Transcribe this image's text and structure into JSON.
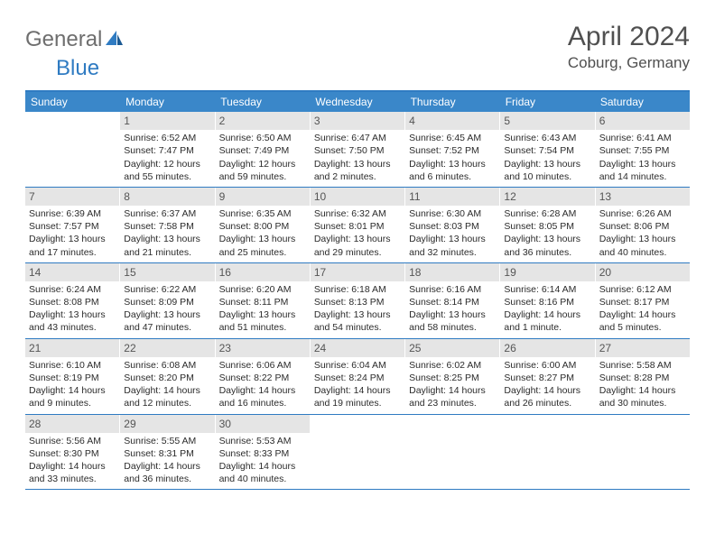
{
  "logo": {
    "text1": "General",
    "text2": "Blue"
  },
  "title": "April 2024",
  "location": "Coburg, Germany",
  "colors": {
    "header_bg": "#3a87c9",
    "accent_line": "#2f7bc2",
    "daynum_bg": "#e5e5e5",
    "text": "#2b2b2b",
    "title_text": "#505050"
  },
  "weekdays": [
    "Sunday",
    "Monday",
    "Tuesday",
    "Wednesday",
    "Thursday",
    "Friday",
    "Saturday"
  ],
  "weeks": [
    [
      {
        "day": "",
        "empty": true
      },
      {
        "day": "1",
        "sunrise": "6:52 AM",
        "sunset": "7:47 PM",
        "daylight": "12 hours and 55 minutes."
      },
      {
        "day": "2",
        "sunrise": "6:50 AM",
        "sunset": "7:49 PM",
        "daylight": "12 hours and 59 minutes."
      },
      {
        "day": "3",
        "sunrise": "6:47 AM",
        "sunset": "7:50 PM",
        "daylight": "13 hours and 2 minutes."
      },
      {
        "day": "4",
        "sunrise": "6:45 AM",
        "sunset": "7:52 PM",
        "daylight": "13 hours and 6 minutes."
      },
      {
        "day": "5",
        "sunrise": "6:43 AM",
        "sunset": "7:54 PM",
        "daylight": "13 hours and 10 minutes."
      },
      {
        "day": "6",
        "sunrise": "6:41 AM",
        "sunset": "7:55 PM",
        "daylight": "13 hours and 14 minutes."
      }
    ],
    [
      {
        "day": "7",
        "sunrise": "6:39 AM",
        "sunset": "7:57 PM",
        "daylight": "13 hours and 17 minutes."
      },
      {
        "day": "8",
        "sunrise": "6:37 AM",
        "sunset": "7:58 PM",
        "daylight": "13 hours and 21 minutes."
      },
      {
        "day": "9",
        "sunrise": "6:35 AM",
        "sunset": "8:00 PM",
        "daylight": "13 hours and 25 minutes."
      },
      {
        "day": "10",
        "sunrise": "6:32 AM",
        "sunset": "8:01 PM",
        "daylight": "13 hours and 29 minutes."
      },
      {
        "day": "11",
        "sunrise": "6:30 AM",
        "sunset": "8:03 PM",
        "daylight": "13 hours and 32 minutes."
      },
      {
        "day": "12",
        "sunrise": "6:28 AM",
        "sunset": "8:05 PM",
        "daylight": "13 hours and 36 minutes."
      },
      {
        "day": "13",
        "sunrise": "6:26 AM",
        "sunset": "8:06 PM",
        "daylight": "13 hours and 40 minutes."
      }
    ],
    [
      {
        "day": "14",
        "sunrise": "6:24 AM",
        "sunset": "8:08 PM",
        "daylight": "13 hours and 43 minutes."
      },
      {
        "day": "15",
        "sunrise": "6:22 AM",
        "sunset": "8:09 PM",
        "daylight": "13 hours and 47 minutes."
      },
      {
        "day": "16",
        "sunrise": "6:20 AM",
        "sunset": "8:11 PM",
        "daylight": "13 hours and 51 minutes."
      },
      {
        "day": "17",
        "sunrise": "6:18 AM",
        "sunset": "8:13 PM",
        "daylight": "13 hours and 54 minutes."
      },
      {
        "day": "18",
        "sunrise": "6:16 AM",
        "sunset": "8:14 PM",
        "daylight": "13 hours and 58 minutes."
      },
      {
        "day": "19",
        "sunrise": "6:14 AM",
        "sunset": "8:16 PM",
        "daylight": "14 hours and 1 minute."
      },
      {
        "day": "20",
        "sunrise": "6:12 AM",
        "sunset": "8:17 PM",
        "daylight": "14 hours and 5 minutes."
      }
    ],
    [
      {
        "day": "21",
        "sunrise": "6:10 AM",
        "sunset": "8:19 PM",
        "daylight": "14 hours and 9 minutes."
      },
      {
        "day": "22",
        "sunrise": "6:08 AM",
        "sunset": "8:20 PM",
        "daylight": "14 hours and 12 minutes."
      },
      {
        "day": "23",
        "sunrise": "6:06 AM",
        "sunset": "8:22 PM",
        "daylight": "14 hours and 16 minutes."
      },
      {
        "day": "24",
        "sunrise": "6:04 AM",
        "sunset": "8:24 PM",
        "daylight": "14 hours and 19 minutes."
      },
      {
        "day": "25",
        "sunrise": "6:02 AM",
        "sunset": "8:25 PM",
        "daylight": "14 hours and 23 minutes."
      },
      {
        "day": "26",
        "sunrise": "6:00 AM",
        "sunset": "8:27 PM",
        "daylight": "14 hours and 26 minutes."
      },
      {
        "day": "27",
        "sunrise": "5:58 AM",
        "sunset": "8:28 PM",
        "daylight": "14 hours and 30 minutes."
      }
    ],
    [
      {
        "day": "28",
        "sunrise": "5:56 AM",
        "sunset": "8:30 PM",
        "daylight": "14 hours and 33 minutes."
      },
      {
        "day": "29",
        "sunrise": "5:55 AM",
        "sunset": "8:31 PM",
        "daylight": "14 hours and 36 minutes."
      },
      {
        "day": "30",
        "sunrise": "5:53 AM",
        "sunset": "8:33 PM",
        "daylight": "14 hours and 40 minutes."
      },
      {
        "day": "",
        "empty": true
      },
      {
        "day": "",
        "empty": true
      },
      {
        "day": "",
        "empty": true
      },
      {
        "day": "",
        "empty": true
      }
    ]
  ],
  "labels": {
    "sunrise_prefix": "Sunrise: ",
    "sunset_prefix": "Sunset: ",
    "daylight_prefix": "Daylight: "
  }
}
